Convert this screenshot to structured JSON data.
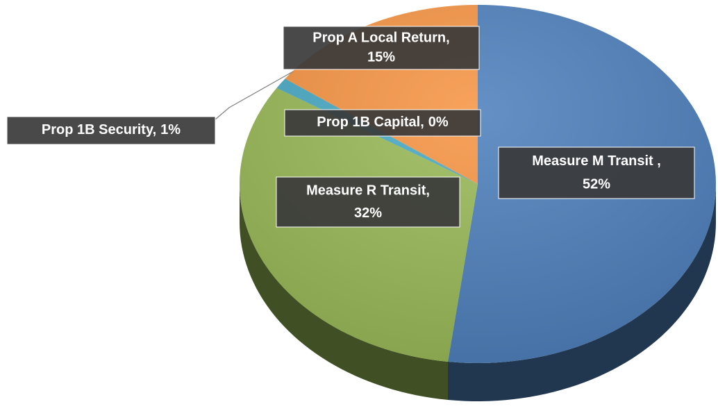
{
  "chart_data": {
    "type": "pie",
    "three_d": true,
    "categories": [
      "Measure M Transit ,",
      "Measure R Transit,",
      "Prop 1B Security,",
      "Prop 1B Capital,",
      "Prop A Local Return,"
    ],
    "values": [
      52,
      32,
      1,
      0,
      15
    ],
    "value_labels": [
      "52%",
      "32%",
      "1%",
      "0%",
      "15%"
    ],
    "colors": [
      "#4f81bd",
      "#9bbb59",
      "#4bacc6",
      "#8064a2",
      "#f79646"
    ]
  }
}
